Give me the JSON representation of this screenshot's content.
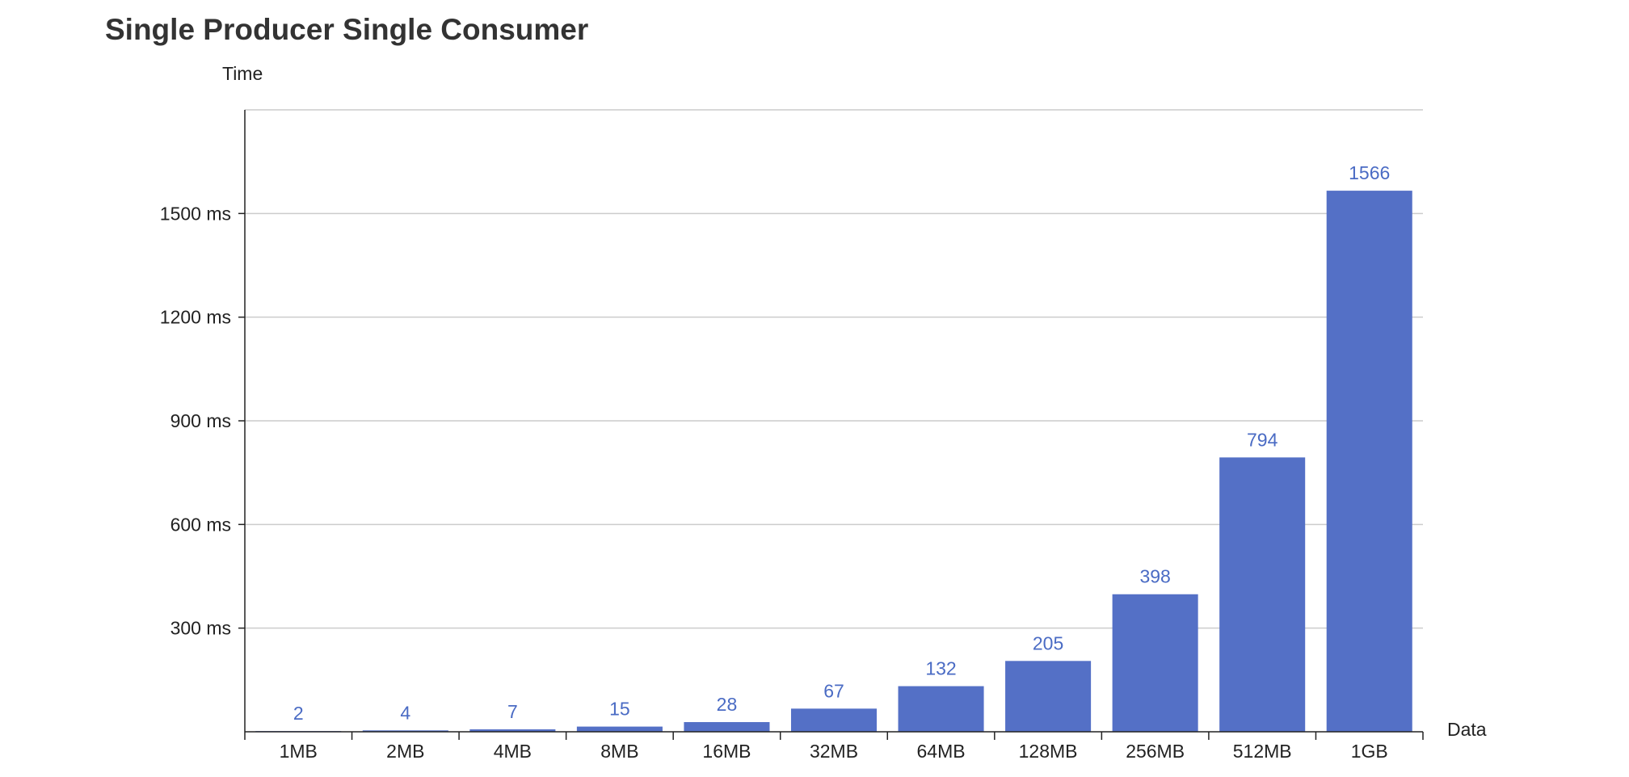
{
  "chart_data": {
    "type": "bar",
    "title": "Single Producer Single Consumer",
    "xlabel": "Data",
    "ylabel": "Time",
    "categories": [
      "1MB",
      "2MB",
      "4MB",
      "8MB",
      "16MB",
      "32MB",
      "64MB",
      "128MB",
      "256MB",
      "512MB",
      "1GB"
    ],
    "values": [
      2,
      4,
      7,
      15,
      28,
      67,
      132,
      205,
      398,
      794,
      1566
    ],
    "data_labels": [
      "2",
      "4",
      "7",
      "15",
      "28",
      "67",
      "132",
      "205",
      "398",
      "794",
      "1566"
    ],
    "ylim": [
      0,
      1800
    ],
    "yticks": [
      300,
      600,
      900,
      1200,
      1500
    ],
    "ytick_labels": [
      "300 ms",
      "600 ms",
      "900 ms",
      "1200 ms",
      "1500 ms"
    ],
    "grid": true,
    "legend": "none",
    "bar_color": "#5470c6",
    "label_color": "#4a6bc4"
  }
}
